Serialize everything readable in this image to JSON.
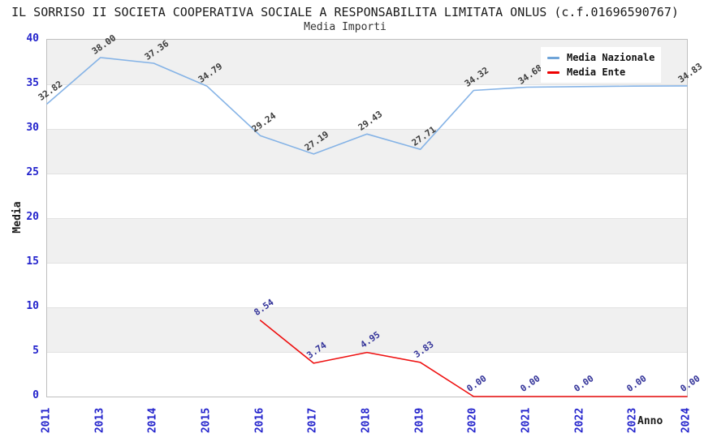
{
  "header": {
    "title": "IL SORRISO II SOCIETA COOPERATIVA SOCIALE A RESPONSABILITA LIMITATA ONLUS (c.f.01696590767)",
    "subtitle": "Media Importi"
  },
  "legend": [
    {
      "label": "Media Nazionale",
      "color": "#6fa4d8"
    },
    {
      "label": "Media Ente",
      "color": "#ee0000"
    }
  ],
  "axes": {
    "y_title": "Media",
    "x_title": "Anno",
    "y_ticks": [
      0,
      5,
      10,
      15,
      20,
      25,
      30,
      35,
      40
    ],
    "tick_color": "#2323cc"
  },
  "chart_data": {
    "type": "line",
    "title": "Media Importi",
    "xlabel": "Anno",
    "ylabel": "Media",
    "ylim": [
      0,
      40
    ],
    "y_step": 5,
    "grid": "horizontal-bands",
    "legend_position": "top-right-inside",
    "categories": [
      "2011",
      "2013",
      "2014",
      "2015",
      "2016",
      "2017",
      "2018",
      "2019",
      "2020",
      "2021",
      "2022",
      "2023",
      "2024"
    ],
    "series": [
      {
        "name": "Media Nazionale",
        "line_color": "#85b3e6",
        "label_color": "#3c3c3c",
        "x": [
          "2011",
          "2013",
          "2014",
          "2015",
          "2016",
          "2017",
          "2018",
          "2019",
          "2020",
          "2021",
          "2022",
          "2023",
          "2024"
        ],
        "values": [
          32.82,
          38.0,
          37.36,
          34.79,
          29.24,
          27.19,
          29.43,
          27.71,
          34.32,
          34.68,
          34.75,
          34.8,
          34.83
        ],
        "labels": [
          "32.82",
          "38.00",
          "37.36",
          "34.79",
          "29.24",
          "27.19",
          "29.43",
          "27.71",
          "34.32",
          "34.68",
          "",
          "",
          "34.83"
        ]
      },
      {
        "name": "Media Ente",
        "line_color": "#ee1010",
        "label_color": "#333399",
        "x": [
          "2016",
          "2017",
          "2018",
          "2019",
          "2020",
          "2021",
          "2022",
          "2023",
          "2024"
        ],
        "values": [
          8.54,
          3.74,
          4.95,
          3.83,
          0.0,
          0.0,
          0.0,
          0.0,
          0.0
        ],
        "labels": [
          "8.54",
          "3.74",
          "4.95",
          "3.83",
          "0.00",
          "0.00",
          "0.00",
          "0.00",
          "0.00"
        ]
      }
    ]
  }
}
